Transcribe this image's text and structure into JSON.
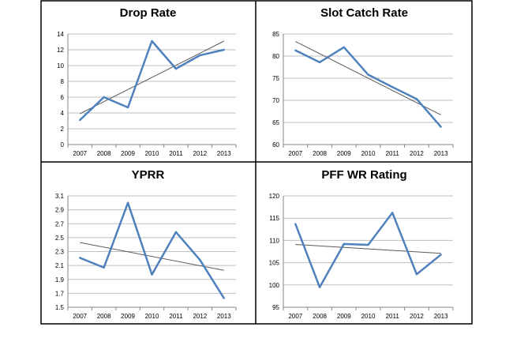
{
  "chart_data": [
    {
      "type": "line",
      "title": "Drop Rate",
      "categories": [
        "2007",
        "2008",
        "2009",
        "2010",
        "2011",
        "2012",
        "2013"
      ],
      "series": [
        {
          "values": [
            3.1,
            6.0,
            4.7,
            13.1,
            9.6,
            11.3,
            12.0
          ]
        }
      ],
      "trendline": [
        3.9,
        13.1
      ],
      "ylim": [
        0,
        14
      ],
      "yticks": [
        0,
        2,
        4,
        6,
        8,
        10,
        12,
        14
      ],
      "xlabel": "",
      "ylabel": "",
      "grid": true,
      "legend": "none"
    },
    {
      "type": "line",
      "title": "Slot Catch Rate",
      "categories": [
        "2007",
        "2008",
        "2009",
        "2010",
        "2011",
        "2012",
        "2013"
      ],
      "series": [
        {
          "values": [
            81.3,
            78.6,
            82.0,
            75.8,
            73.0,
            70.3,
            64.0
          ]
        }
      ],
      "trendline": [
        83.3,
        66.7
      ],
      "ylim": [
        60,
        85
      ],
      "yticks": [
        60,
        65,
        70,
        75,
        80,
        85
      ],
      "xlabel": "",
      "ylabel": "",
      "grid": true,
      "legend": "none"
    },
    {
      "type": "line",
      "title": "YPRR",
      "categories": [
        "2007",
        "2008",
        "2009",
        "2010",
        "2011",
        "2012",
        "2013"
      ],
      "series": [
        {
          "values": [
            2.21,
            2.07,
            3.0,
            1.97,
            2.58,
            2.18,
            1.63
          ]
        }
      ],
      "trendline": [
        2.43,
        2.03
      ],
      "ylim": [
        1.5,
        3.1
      ],
      "yticks": [
        1.5,
        1.7,
        1.9,
        2.1,
        2.3,
        2.5,
        2.7,
        2.9,
        3.1
      ],
      "xlabel": "",
      "ylabel": "",
      "grid": true,
      "legend": "none"
    },
    {
      "type": "line",
      "title": "PFF WR Rating",
      "categories": [
        "2007",
        "2008",
        "2009",
        "2010",
        "2011",
        "2012",
        "2013"
      ],
      "series": [
        {
          "values": [
            113.7,
            99.5,
            109.2,
            109.0,
            116.2,
            102.4,
            106.8
          ]
        }
      ],
      "trendline": [
        109.1,
        107.1
      ],
      "ylim": [
        95,
        120
      ],
      "yticks": [
        95,
        100,
        105,
        110,
        115,
        120
      ],
      "xlabel": "",
      "ylabel": "",
      "grid": true,
      "legend": "none"
    }
  ],
  "colors": {
    "series": "#4F81BD",
    "trendline": "#595959",
    "grid": "#bfbfbf",
    "axis": "#868686",
    "border": "#000000"
  }
}
